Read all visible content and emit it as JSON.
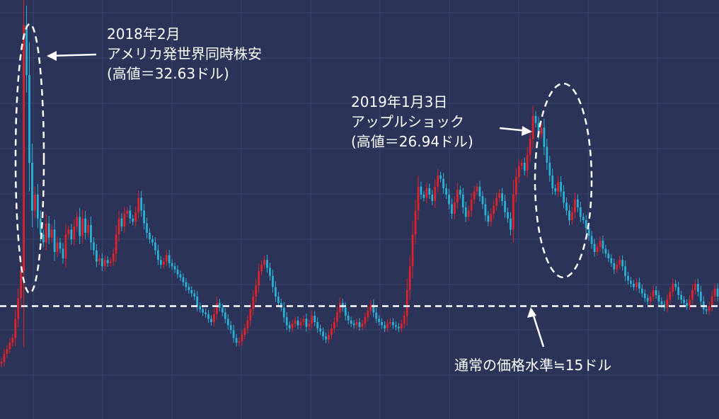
{
  "chart_data": {
    "type": "candlestick",
    "title": "",
    "xlabel": "",
    "ylabel": "",
    "ylim": [
      8,
      34
    ],
    "colors": {
      "background": "#2b3358",
      "grid": "#3b4470",
      "up": "#e0232b",
      "down": "#2ab2d6",
      "annotation": "#ffffff"
    },
    "grid": true,
    "reference_level": 15,
    "series": [
      {
        "values": [
          11.5,
          12.0,
          12.3,
          12.7,
          13.0,
          14.2,
          15.5,
          17.2,
          32.63,
          29.5,
          24.0,
          21.0,
          22.0,
          20.5,
          19.5,
          19.0,
          20.2,
          19.3,
          19.8,
          18.4,
          19.0,
          18.6,
          18.0,
          19.5,
          19.8,
          19.2,
          20.0,
          20.6,
          19.4,
          20.5,
          19.6,
          20.1,
          19.0,
          18.5,
          17.8,
          18.0,
          17.5,
          17.9,
          17.7,
          17.8,
          18.3,
          19.5,
          20.5,
          20.0,
          20.8,
          21.0,
          20.5,
          20.3,
          20.9,
          21.8,
          21.0,
          20.2,
          19.6,
          19.2,
          19.0,
          18.5,
          17.9,
          17.6,
          17.8,
          18.2,
          17.7,
          17.5,
          17.3,
          17.0,
          16.8,
          16.5,
          16.2,
          16.0,
          15.8,
          15.6,
          15.0,
          14.8,
          14.6,
          14.5,
          14.2,
          14.0,
          14.5,
          15.2,
          14.9,
          14.6,
          14.2,
          13.8,
          13.5,
          13.0,
          12.7,
          12.8,
          13.2,
          13.6,
          14.1,
          14.8,
          15.6,
          16.3,
          17.2,
          17.6,
          17.9,
          17.4,
          16.9,
          16.2,
          15.6,
          15.2,
          14.9,
          14.3,
          13.8,
          13.6,
          13.9,
          14.1,
          13.8,
          14.0,
          14.2,
          13.7,
          13.9,
          14.4,
          14.0,
          13.6,
          13.4,
          13.1,
          12.9,
          13.2,
          13.6,
          14.0,
          14.6,
          15.2,
          14.9,
          14.4,
          14.1,
          13.9,
          13.8,
          14.0,
          13.7,
          13.9,
          14.3,
          14.7,
          15.1,
          14.6,
          14.2,
          14.0,
          13.8,
          13.6,
          13.9,
          14.0,
          13.8,
          13.7,
          13.6,
          13.9,
          14.4,
          16.0,
          17.5,
          19.5,
          21.0,
          22.5,
          22.0,
          21.8,
          22.4,
          22.0,
          21.6,
          22.5,
          23.2,
          23.0,
          22.4,
          22.0,
          21.4,
          20.8,
          21.5,
          22.3,
          22.0,
          21.2,
          20.6,
          21.0,
          21.7,
          22.2,
          22.5,
          21.9,
          21.4,
          20.7,
          20.3,
          20.8,
          21.3,
          21.8,
          22.1,
          21.6,
          20.9,
          20.5,
          19.8,
          22.0,
          23.1,
          23.8,
          24.0,
          23.5,
          24.5,
          25.5,
          26.94,
          26.5,
          25.8,
          26.2,
          25.0,
          24.0,
          23.2,
          22.4,
          22.2,
          22.8,
          22.2,
          21.5,
          21.0,
          20.4,
          20.9,
          21.7,
          21.2,
          20.6,
          20.4,
          19.9,
          19.4,
          18.9,
          18.4,
          18.7,
          19.1,
          18.6,
          18.3,
          18.0,
          17.7,
          17.3,
          17.6,
          17.9,
          17.5,
          16.9,
          16.6,
          16.4,
          16.2,
          16.5,
          16.1,
          15.8,
          15.5,
          15.3,
          15.6,
          16.0,
          15.7,
          15.3,
          15.1,
          14.9,
          15.4,
          15.9,
          16.4,
          16.2,
          15.7,
          15.4,
          15.2,
          15.0,
          15.4,
          16.0,
          16.4,
          15.9,
          15.3,
          14.8,
          14.7,
          15.0,
          15.6,
          16.1,
          15.6
        ]
      }
    ],
    "annotations": [
      {
        "text": [
          "2018年2月",
          "アメリカ発世界同時株安",
          "(高値＝32.63ドル)"
        ]
      },
      {
        "text": [
          "2019年1月3日",
          "アップルショック",
          "(高値＝26.94ドル)"
        ]
      },
      {
        "text": [
          "通常の価格水準≒15ドル"
        ]
      }
    ]
  }
}
